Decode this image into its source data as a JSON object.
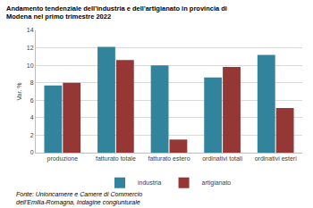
{
  "chart_data": {
    "type": "bar",
    "title": "Andamento tendenziale dell'industria e dell'artigianato in provincia di Modena nel primo trimestre 2022",
    "y_label": "Var. %",
    "source": "Fonte: Unioncamere e Camere di Commercio dell'Emilia-Romagna, Indagine congiunturale",
    "categories": [
      "produzione",
      "fatturato totale",
      "fatturato estero",
      "ordinativi totali",
      "ordinativi esteri"
    ],
    "series": [
      {
        "name": "industria",
        "color": "#31849b",
        "values": [
          7.7,
          12.1,
          10.0,
          8.6,
          11.2
        ]
      },
      {
        "name": "artigianato",
        "color": "#953735",
        "values": [
          8.0,
          10.6,
          1.5,
          9.8,
          5.1
        ]
      }
    ],
    "ylim": [
      0,
      14
    ],
    "yticks": [
      0,
      2,
      4,
      6,
      8,
      10,
      12,
      14
    ],
    "grid": true,
    "legend": "bottom"
  }
}
